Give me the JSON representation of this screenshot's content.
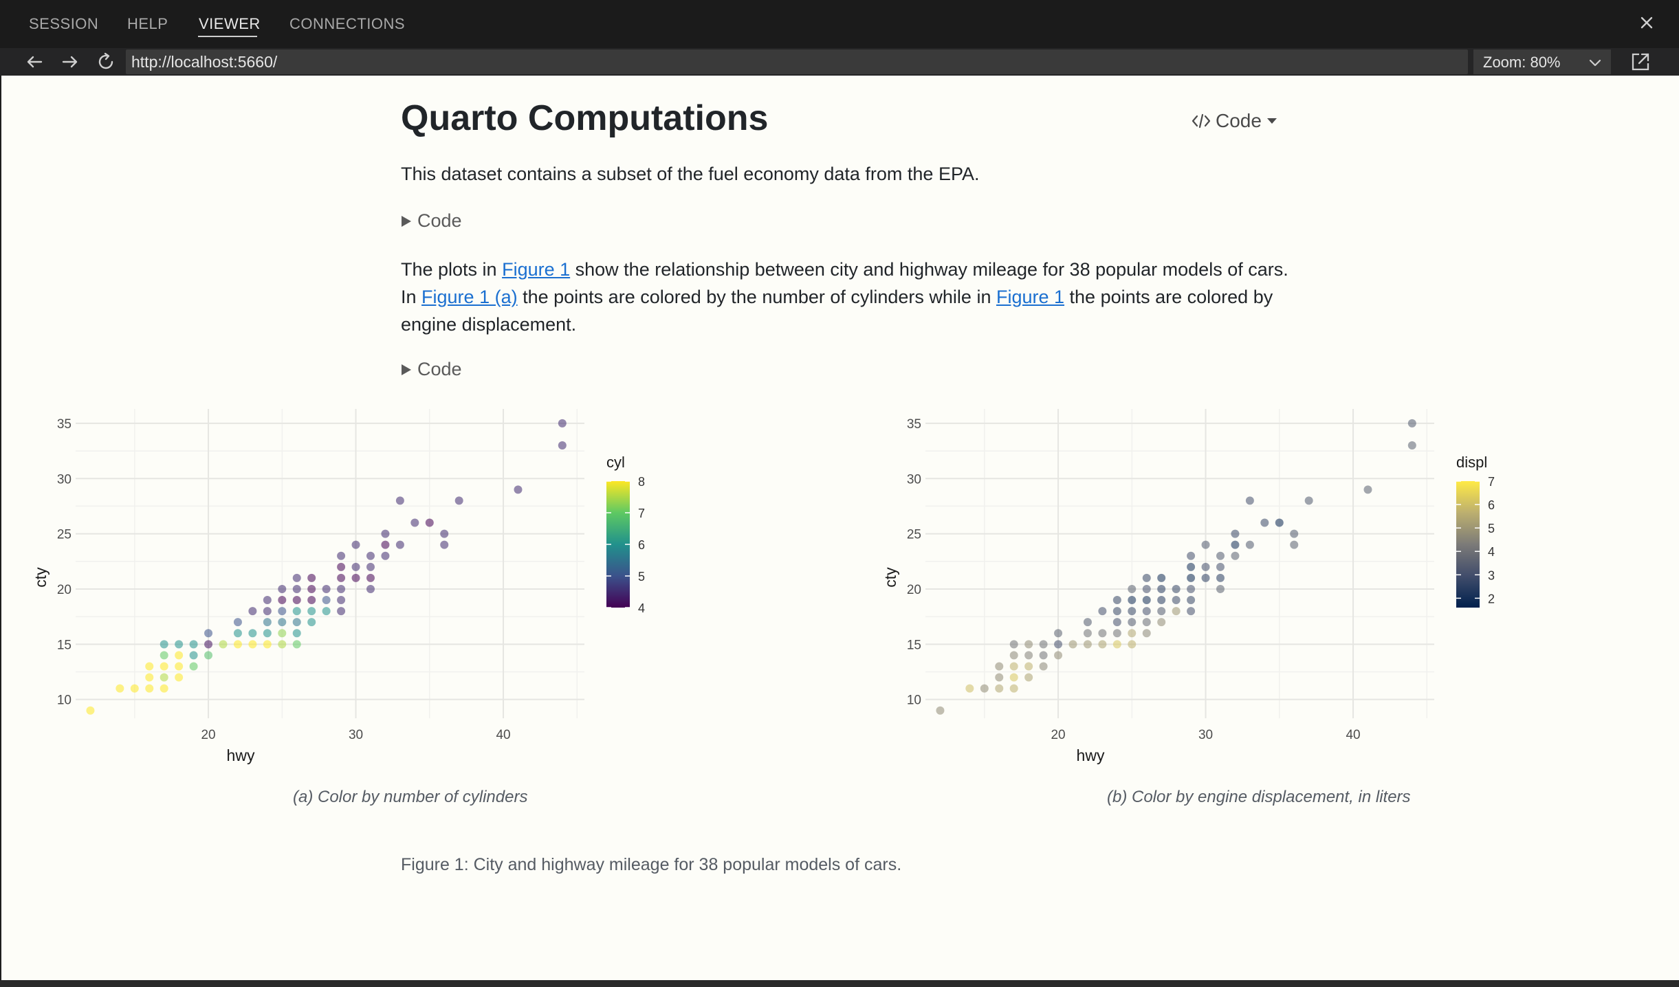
{
  "tabs": [
    {
      "label": "SESSION",
      "active": false
    },
    {
      "label": "HELP",
      "active": false
    },
    {
      "label": "VIEWER",
      "active": true
    },
    {
      "label": "CONNECTIONS",
      "active": false
    }
  ],
  "toolbar": {
    "url": "http://localhost:5660/",
    "zoom": "Zoom: 80%"
  },
  "page": {
    "title": "Quarto Computations",
    "code_tools_label": "Code",
    "intro": "This dataset contains a subset of the fuel economy data from the EPA.",
    "fold_label": "Code",
    "paragraph": {
      "t1": "The plots in ",
      "link1": "Figure 1",
      "t2": " show the relationship between city and highway mileage for 38 popular models of cars. In ",
      "link2": "Figure 1 (a)",
      "t3": " the points are colored by the number of cylinders while in ",
      "link3": "Figure 1",
      "t4": " the points are colored by engine displacement."
    },
    "caption_a": "(a) Color by number of cylinders",
    "caption_b": "(b) Color by engine displacement, in liters",
    "figure_caption": "Figure 1: City and highway mileage for 38 popular models of cars."
  },
  "icons": {
    "back": "arrow-left-icon",
    "forward": "arrow-right-icon",
    "refresh": "refresh-icon",
    "popout": "popout-icon",
    "close": "close-icon",
    "code": "code-brackets-icon",
    "caret": "caret-down-icon",
    "fold": "triangle-right-icon"
  },
  "chart_data": [
    {
      "type": "scatter",
      "xlabel": "hwy",
      "ylabel": "cty",
      "xlim": [
        11,
        45.5
      ],
      "ylim": [
        8.3,
        36.3
      ],
      "x_ticks": [
        20,
        30,
        40
      ],
      "y_ticks": [
        10,
        15,
        20,
        25,
        30,
        35
      ],
      "grid": true,
      "legend_title": "cyl",
      "legend_ticks": [
        4,
        5,
        6,
        7,
        8
      ],
      "legend_range": [
        4,
        8
      ],
      "colorscale": [
        "#440154",
        "#3b528b",
        "#21918c",
        "#5ec962",
        "#fde725"
      ],
      "legend_placement": "right",
      "color_variable": "c",
      "points": [
        {
          "x": 12,
          "y": 9,
          "c": 8
        },
        {
          "x": 14,
          "y": 11,
          "c": 8
        },
        {
          "x": 15,
          "y": 11,
          "c": 8
        },
        {
          "x": 16,
          "y": 11,
          "c": 8
        },
        {
          "x": 17,
          "y": 11,
          "c": 8
        },
        {
          "x": 16,
          "y": 12,
          "c": 8
        },
        {
          "x": 17,
          "y": 12,
          "c": 7.5
        },
        {
          "x": 18,
          "y": 12,
          "c": 8
        },
        {
          "x": 16,
          "y": 13,
          "c": 8
        },
        {
          "x": 17,
          "y": 13,
          "c": 8
        },
        {
          "x": 18,
          "y": 13,
          "c": 8
        },
        {
          "x": 19,
          "y": 13,
          "c": 7
        },
        {
          "x": 17,
          "y": 14,
          "c": 7
        },
        {
          "x": 18,
          "y": 14,
          "c": 8
        },
        {
          "x": 19,
          "y": 14,
          "c": 6
        },
        {
          "x": 20,
          "y": 14,
          "c": 6.8
        },
        {
          "x": 17,
          "y": 15,
          "c": 6
        },
        {
          "x": 18,
          "y": 15,
          "c": 6
        },
        {
          "x": 19,
          "y": 15,
          "c": 6
        },
        {
          "x": 20,
          "y": 15,
          "c": 4.2
        },
        {
          "x": 21,
          "y": 15,
          "c": 7.5
        },
        {
          "x": 22,
          "y": 15,
          "c": 8
        },
        {
          "x": 23,
          "y": 15,
          "c": 8
        },
        {
          "x": 24,
          "y": 15,
          "c": 8
        },
        {
          "x": 25,
          "y": 15,
          "c": 7.5
        },
        {
          "x": 26,
          "y": 15,
          "c": 7
        },
        {
          "x": 20,
          "y": 16,
          "c": 5
        },
        {
          "x": 22,
          "y": 16,
          "c": 6
        },
        {
          "x": 23,
          "y": 16,
          "c": 6
        },
        {
          "x": 24,
          "y": 16,
          "c": 6
        },
        {
          "x": 25,
          "y": 16,
          "c": 7.3
        },
        {
          "x": 26,
          "y": 16,
          "c": 6
        },
        {
          "x": 22,
          "y": 17,
          "c": 5
        },
        {
          "x": 24,
          "y": 17,
          "c": 5.5
        },
        {
          "x": 25,
          "y": 17,
          "c": 5.5
        },
        {
          "x": 26,
          "y": 17,
          "c": 5.5
        },
        {
          "x": 27,
          "y": 17,
          "c": 6
        },
        {
          "x": 23,
          "y": 18,
          "c": 4.5
        },
        {
          "x": 24,
          "y": 18,
          "c": 4.5
        },
        {
          "x": 25,
          "y": 18,
          "c": 5
        },
        {
          "x": 26,
          "y": 18,
          "c": 6
        },
        {
          "x": 27,
          "y": 18,
          "c": 6
        },
        {
          "x": 28,
          "y": 18,
          "c": 6
        },
        {
          "x": 29,
          "y": 18,
          "c": 4.5
        },
        {
          "x": 24,
          "y": 19,
          "c": 4.5
        },
        {
          "x": 25,
          "y": 19,
          "c": 4
        },
        {
          "x": 26,
          "y": 19,
          "c": 4
        },
        {
          "x": 27,
          "y": 19,
          "c": 4
        },
        {
          "x": 28,
          "y": 19,
          "c": 5
        },
        {
          "x": 29,
          "y": 19,
          "c": 4.5
        },
        {
          "x": 25,
          "y": 20,
          "c": 4.5
        },
        {
          "x": 26,
          "y": 20,
          "c": 4.5
        },
        {
          "x": 27,
          "y": 20,
          "c": 4
        },
        {
          "x": 28,
          "y": 20,
          "c": 4.5
        },
        {
          "x": 29,
          "y": 20,
          "c": 4.5
        },
        {
          "x": 31,
          "y": 20,
          "c": 4.5
        },
        {
          "x": 26,
          "y": 21,
          "c": 4.5
        },
        {
          "x": 27,
          "y": 21,
          "c": 4
        },
        {
          "x": 29,
          "y": 21,
          "c": 4
        },
        {
          "x": 30,
          "y": 21,
          "c": 4
        },
        {
          "x": 31,
          "y": 21,
          "c": 4
        },
        {
          "x": 29,
          "y": 22,
          "c": 4
        },
        {
          "x": 30,
          "y": 22,
          "c": 4.5
        },
        {
          "x": 31,
          "y": 22,
          "c": 4.5
        },
        {
          "x": 29,
          "y": 23,
          "c": 4.5
        },
        {
          "x": 31,
          "y": 23,
          "c": 4.5
        },
        {
          "x": 32,
          "y": 23,
          "c": 4.5
        },
        {
          "x": 30,
          "y": 24,
          "c": 4.5
        },
        {
          "x": 32,
          "y": 24,
          "c": 4
        },
        {
          "x": 33,
          "y": 24,
          "c": 4.5
        },
        {
          "x": 36,
          "y": 24,
          "c": 4.5
        },
        {
          "x": 32,
          "y": 25,
          "c": 4.5
        },
        {
          "x": 36,
          "y": 25,
          "c": 4.5
        },
        {
          "x": 34,
          "y": 26,
          "c": 4.5
        },
        {
          "x": 35,
          "y": 26,
          "c": 4
        },
        {
          "x": 33,
          "y": 28,
          "c": 4.5
        },
        {
          "x": 37,
          "y": 28,
          "c": 4.5
        },
        {
          "x": 41,
          "y": 29,
          "c": 4.5
        },
        {
          "x": 44,
          "y": 33,
          "c": 4.5
        },
        {
          "x": 44,
          "y": 35,
          "c": 4.5
        }
      ]
    },
    {
      "type": "scatter",
      "xlabel": "hwy",
      "ylabel": "cty",
      "xlim": [
        11,
        45.5
      ],
      "ylim": [
        8.3,
        36.3
      ],
      "x_ticks": [
        20,
        30,
        40
      ],
      "y_ticks": [
        10,
        15,
        20,
        25,
        30,
        35
      ],
      "grid": true,
      "legend_title": "displ",
      "legend_ticks": [
        2,
        3,
        4,
        5,
        6,
        7
      ],
      "legend_range": [
        1.6,
        7
      ],
      "colorscale": [
        "#00204d",
        "#414d6b",
        "#7c7b78",
        "#bcaf6f",
        "#ffea46"
      ],
      "legend_placement": "right",
      "color_variable": "d",
      "points": [
        {
          "x": 12,
          "y": 9,
          "d": 4.7
        },
        {
          "x": 14,
          "y": 11,
          "d": 6
        },
        {
          "x": 15,
          "y": 11,
          "d": 4.7
        },
        {
          "x": 16,
          "y": 11,
          "d": 5.4
        },
        {
          "x": 17,
          "y": 11,
          "d": 5.7
        },
        {
          "x": 16,
          "y": 12,
          "d": 4.7
        },
        {
          "x": 17,
          "y": 12,
          "d": 6.2
        },
        {
          "x": 18,
          "y": 12,
          "d": 5.3
        },
        {
          "x": 16,
          "y": 13,
          "d": 4.7
        },
        {
          "x": 17,
          "y": 13,
          "d": 5.7
        },
        {
          "x": 18,
          "y": 13,
          "d": 5.7
        },
        {
          "x": 19,
          "y": 13,
          "d": 4.6
        },
        {
          "x": 17,
          "y": 14,
          "d": 4.6
        },
        {
          "x": 18,
          "y": 14,
          "d": 4.4
        },
        {
          "x": 19,
          "y": 14,
          "d": 4
        },
        {
          "x": 20,
          "y": 14,
          "d": 4.7
        },
        {
          "x": 17,
          "y": 15,
          "d": 4
        },
        {
          "x": 18,
          "y": 15,
          "d": 4.7
        },
        {
          "x": 19,
          "y": 15,
          "d": 4
        },
        {
          "x": 20,
          "y": 15,
          "d": 3
        },
        {
          "x": 21,
          "y": 15,
          "d": 5
        },
        {
          "x": 22,
          "y": 15,
          "d": 5
        },
        {
          "x": 23,
          "y": 15,
          "d": 5.3
        },
        {
          "x": 24,
          "y": 15,
          "d": 6.2
        },
        {
          "x": 25,
          "y": 15,
          "d": 5.7
        },
        {
          "x": 20,
          "y": 16,
          "d": 3.5
        },
        {
          "x": 22,
          "y": 16,
          "d": 4
        },
        {
          "x": 23,
          "y": 16,
          "d": 4
        },
        {
          "x": 24,
          "y": 16,
          "d": 4
        },
        {
          "x": 25,
          "y": 16,
          "d": 5.4
        },
        {
          "x": 26,
          "y": 16,
          "d": 4.6
        },
        {
          "x": 22,
          "y": 17,
          "d": 3.3
        },
        {
          "x": 24,
          "y": 17,
          "d": 3
        },
        {
          "x": 25,
          "y": 17,
          "d": 3.3
        },
        {
          "x": 26,
          "y": 17,
          "d": 3.8
        },
        {
          "x": 27,
          "y": 17,
          "d": 4.7
        },
        {
          "x": 23,
          "y": 18,
          "d": 3
        },
        {
          "x": 24,
          "y": 18,
          "d": 2.7
        },
        {
          "x": 25,
          "y": 18,
          "d": 2.7
        },
        {
          "x": 26,
          "y": 18,
          "d": 3
        },
        {
          "x": 27,
          "y": 18,
          "d": 3.3
        },
        {
          "x": 28,
          "y": 18,
          "d": 5
        },
        {
          "x": 29,
          "y": 18,
          "d": 3
        },
        {
          "x": 24,
          "y": 19,
          "d": 2.7
        },
        {
          "x": 25,
          "y": 19,
          "d": 2
        },
        {
          "x": 26,
          "y": 19,
          "d": 2
        },
        {
          "x": 27,
          "y": 19,
          "d": 2.4
        },
        {
          "x": 28,
          "y": 19,
          "d": 2.8
        },
        {
          "x": 29,
          "y": 19,
          "d": 2.7
        },
        {
          "x": 25,
          "y": 20,
          "d": 3.5
        },
        {
          "x": 26,
          "y": 20,
          "d": 3
        },
        {
          "x": 27,
          "y": 20,
          "d": 2.4
        },
        {
          "x": 28,
          "y": 20,
          "d": 2.7
        },
        {
          "x": 29,
          "y": 20,
          "d": 3
        },
        {
          "x": 31,
          "y": 20,
          "d": 3.5
        },
        {
          "x": 26,
          "y": 21,
          "d": 2.7
        },
        {
          "x": 27,
          "y": 21,
          "d": 2
        },
        {
          "x": 29,
          "y": 21,
          "d": 1.8
        },
        {
          "x": 30,
          "y": 21,
          "d": 2.5
        },
        {
          "x": 31,
          "y": 21,
          "d": 2.4
        },
        {
          "x": 29,
          "y": 22,
          "d": 2
        },
        {
          "x": 30,
          "y": 22,
          "d": 3
        },
        {
          "x": 31,
          "y": 22,
          "d": 3
        },
        {
          "x": 29,
          "y": 23,
          "d": 3
        },
        {
          "x": 31,
          "y": 23,
          "d": 3.3
        },
        {
          "x": 32,
          "y": 23,
          "d": 3.5
        },
        {
          "x": 30,
          "y": 24,
          "d": 3.3
        },
        {
          "x": 32,
          "y": 24,
          "d": 2
        },
        {
          "x": 33,
          "y": 24,
          "d": 3.3
        },
        {
          "x": 36,
          "y": 24,
          "d": 3.5
        },
        {
          "x": 32,
          "y": 25,
          "d": 2.8
        },
        {
          "x": 36,
          "y": 25,
          "d": 3.3
        },
        {
          "x": 34,
          "y": 26,
          "d": 2.8
        },
        {
          "x": 35,
          "y": 26,
          "d": 1.8
        },
        {
          "x": 33,
          "y": 28,
          "d": 3
        },
        {
          "x": 37,
          "y": 28,
          "d": 3.3
        },
        {
          "x": 41,
          "y": 29,
          "d": 3.5
        },
        {
          "x": 44,
          "y": 33,
          "d": 3.5
        },
        {
          "x": 44,
          "y": 35,
          "d": 3.3
        }
      ]
    }
  ]
}
